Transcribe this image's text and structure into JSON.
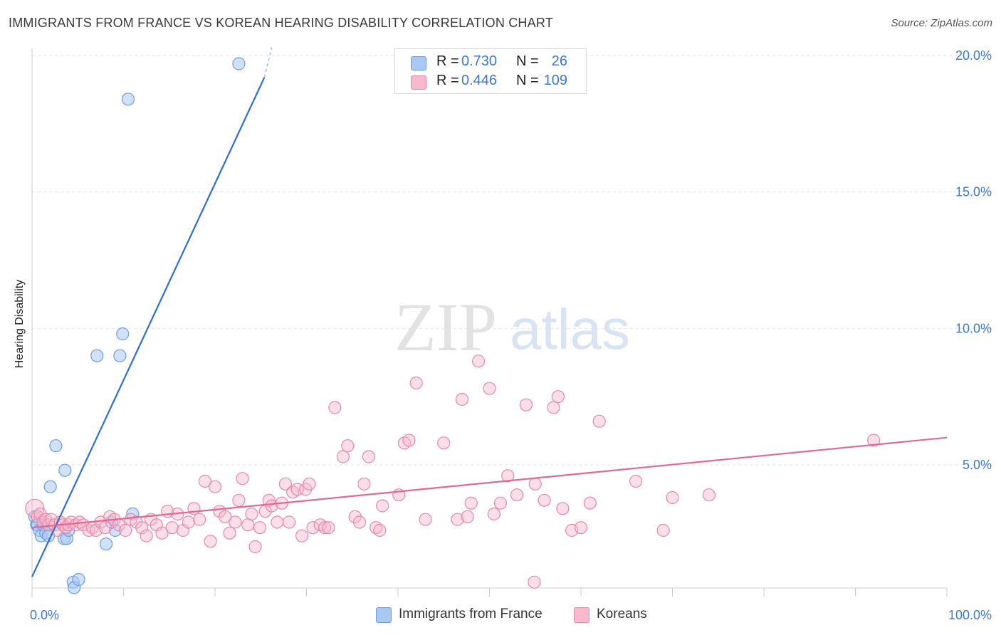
{
  "header": {
    "title": "IMMIGRANTS FROM FRANCE VS KOREAN HEARING DISABILITY CORRELATION CHART",
    "source": "Source: ZipAtlas.com"
  },
  "watermark": {
    "zip": "ZIP",
    "atlas": "atlas"
  },
  "legend": {
    "rows": [
      {
        "r_label": "R =",
        "r_value": "0.730",
        "n_label": "N =",
        "n_value": "26",
        "color": "#a9c8f2",
        "border": "#6a9ee0"
      },
      {
        "r_label": "R =",
        "r_value": "0.446",
        "n_label": "N =",
        "n_value": "109",
        "color": "#f7b9cc",
        "border": "#e888a8"
      }
    ]
  },
  "bottom_legend": [
    {
      "label": "Immigrants from France",
      "color": "#a9c8f2",
      "border": "#6a9ee0"
    },
    {
      "label": "Koreans",
      "color": "#f7b9cc",
      "border": "#e888a8"
    }
  ],
  "chart_data": {
    "type": "scatter",
    "xlabel": "",
    "ylabel": "Hearing Disability",
    "xlim": [
      0,
      100
    ],
    "ylim": [
      0.0,
      20.5
    ],
    "x_tick_labels": [
      "0.0%",
      "100.0%"
    ],
    "y_ticks": [
      5,
      10,
      15,
      20
    ],
    "y_tick_labels": [
      "5.0%",
      "10.0%",
      "15.0%",
      "20.0%"
    ],
    "grid": "horizontal dashed",
    "legend_position": "top-center",
    "series": [
      {
        "name": "Immigrants from France",
        "color": "#6a9ee0",
        "fill": "#a9c8f2",
        "points": [
          [
            0.3,
            3.1
          ],
          [
            0.5,
            2.8
          ],
          [
            0.6,
            2.8
          ],
          [
            0.8,
            2.6
          ],
          [
            1.0,
            2.4
          ],
          [
            1.2,
            2.8
          ],
          [
            1.5,
            2.5
          ],
          [
            1.8,
            2.4
          ],
          [
            2.0,
            4.2
          ],
          [
            2.6,
            5.7
          ],
          [
            3.5,
            2.3
          ],
          [
            3.6,
            4.8
          ],
          [
            3.8,
            2.3
          ],
          [
            4.0,
            2.6
          ],
          [
            4.5,
            0.7
          ],
          [
            4.6,
            0.5
          ],
          [
            5.1,
            0.8
          ],
          [
            7.1,
            9.0
          ],
          [
            8.1,
            2.1
          ],
          [
            9.1,
            2.6
          ],
          [
            9.6,
            9.0
          ],
          [
            9.9,
            9.8
          ],
          [
            10.5,
            18.4
          ],
          [
            11.0,
            3.2
          ],
          [
            22.6,
            19.7
          ],
          [
            8.7,
            2.9
          ]
        ],
        "trend": {
          "x": [
            0.0,
            25.4
          ],
          "y": [
            0.9,
            19.2
          ],
          "dashed_to": [
            26.2,
            20.3
          ]
        }
      },
      {
        "name": "Koreans",
        "color": "#e888a8",
        "fill": "#f7b9cc",
        "points": [
          [
            0.3,
            3.4
          ],
          [
            0.6,
            3.1
          ],
          [
            0.9,
            3.2
          ],
          [
            1.2,
            2.9
          ],
          [
            1.5,
            3.0
          ],
          [
            1.8,
            2.8
          ],
          [
            2.1,
            3.0
          ],
          [
            2.5,
            2.8
          ],
          [
            2.8,
            2.6
          ],
          [
            3.1,
            2.9
          ],
          [
            3.4,
            2.8
          ],
          [
            3.7,
            2.7
          ],
          [
            4.0,
            2.8
          ],
          [
            4.3,
            2.9
          ],
          [
            4.8,
            2.8
          ],
          [
            5.2,
            2.9
          ],
          [
            5.6,
            2.8
          ],
          [
            6.2,
            2.6
          ],
          [
            6.6,
            2.7
          ],
          [
            7.0,
            2.6
          ],
          [
            7.5,
            2.9
          ],
          [
            8.0,
            2.7
          ],
          [
            8.5,
            3.1
          ],
          [
            9.0,
            3.0
          ],
          [
            9.5,
            2.8
          ],
          [
            10.2,
            2.6
          ],
          [
            10.8,
            3.0
          ],
          [
            11.4,
            2.9
          ],
          [
            12.0,
            2.7
          ],
          [
            12.5,
            2.4
          ],
          [
            13.0,
            3.0
          ],
          [
            13.6,
            2.8
          ],
          [
            14.2,
            2.5
          ],
          [
            14.8,
            3.3
          ],
          [
            15.3,
            2.7
          ],
          [
            15.9,
            3.2
          ],
          [
            16.5,
            2.6
          ],
          [
            17.1,
            2.9
          ],
          [
            17.7,
            3.4
          ],
          [
            18.3,
            3.0
          ],
          [
            18.9,
            4.4
          ],
          [
            19.5,
            2.2
          ],
          [
            20.0,
            4.2
          ],
          [
            20.5,
            3.3
          ],
          [
            21.1,
            3.1
          ],
          [
            21.6,
            2.5
          ],
          [
            22.2,
            2.9
          ],
          [
            22.6,
            3.7
          ],
          [
            23.0,
            4.5
          ],
          [
            23.6,
            2.8
          ],
          [
            24.0,
            3.2
          ],
          [
            24.4,
            2.0
          ],
          [
            24.9,
            2.7
          ],
          [
            25.5,
            3.3
          ],
          [
            25.9,
            3.7
          ],
          [
            26.2,
            3.5
          ],
          [
            26.8,
            2.9
          ],
          [
            27.3,
            3.6
          ],
          [
            27.7,
            4.3
          ],
          [
            28.1,
            2.9
          ],
          [
            28.5,
            4.0
          ],
          [
            29.0,
            4.1
          ],
          [
            29.5,
            2.4
          ],
          [
            29.9,
            4.1
          ],
          [
            30.3,
            4.3
          ],
          [
            30.7,
            2.7
          ],
          [
            31.5,
            2.8
          ],
          [
            32.0,
            2.7
          ],
          [
            32.4,
            2.7
          ],
          [
            33.1,
            7.1
          ],
          [
            34.0,
            5.3
          ],
          [
            34.5,
            5.7
          ],
          [
            35.3,
            3.1
          ],
          [
            35.8,
            2.9
          ],
          [
            36.3,
            4.3
          ],
          [
            36.8,
            5.3
          ],
          [
            37.6,
            2.7
          ],
          [
            38.3,
            3.5
          ],
          [
            40.1,
            3.9
          ],
          [
            40.7,
            5.8
          ],
          [
            41.2,
            5.9
          ],
          [
            42.0,
            8.0
          ],
          [
            43.0,
            3.0
          ],
          [
            45.0,
            5.8
          ],
          [
            46.5,
            3.0
          ],
          [
            47.0,
            7.4
          ],
          [
            47.6,
            3.1
          ],
          [
            48.0,
            3.6
          ],
          [
            48.8,
            8.8
          ],
          [
            50.0,
            7.8
          ],
          [
            50.5,
            3.2
          ],
          [
            51.2,
            3.6
          ],
          [
            52.0,
            4.6
          ],
          [
            53.0,
            3.9
          ],
          [
            54.0,
            7.2
          ],
          [
            55.0,
            4.3
          ],
          [
            56.0,
            3.7
          ],
          [
            57.0,
            7.1
          ],
          [
            57.5,
            7.5
          ],
          [
            58.0,
            3.4
          ],
          [
            59.0,
            2.6
          ],
          [
            60.0,
            2.7
          ],
          [
            61.0,
            3.6
          ],
          [
            62.0,
            6.6
          ],
          [
            66.0,
            4.4
          ],
          [
            69.0,
            2.6
          ],
          [
            70.0,
            3.8
          ],
          [
            74.0,
            3.9
          ],
          [
            92.0,
            5.9
          ],
          [
            54.9,
            0.7
          ],
          [
            38.0,
            2.6
          ]
        ],
        "trend": {
          "x": [
            0.0,
            100.0
          ],
          "y": [
            2.7,
            6.0
          ]
        }
      }
    ]
  }
}
